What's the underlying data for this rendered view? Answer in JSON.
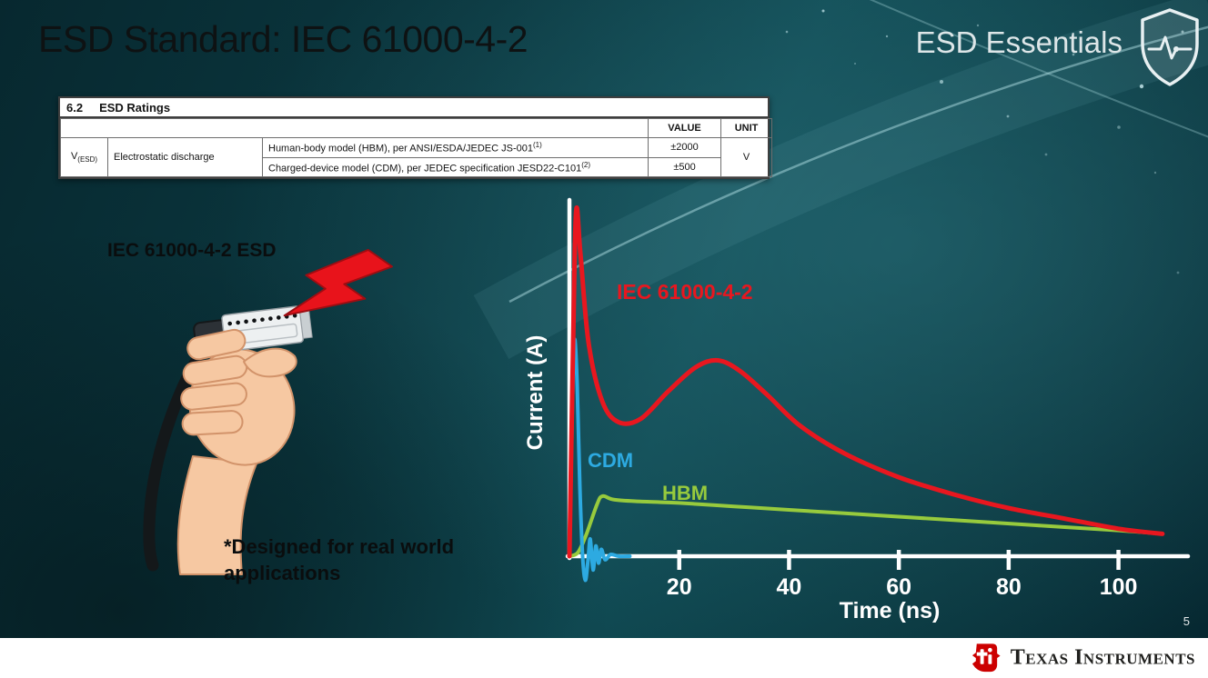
{
  "slide": {
    "title": "ESD Standard: IEC 61000-4-2",
    "series": "ESD Essentials",
    "page_number": "5",
    "footer_brand": "Texas Instruments"
  },
  "colors": {
    "ti_red": "#cc0000",
    "bolt_red": "#e8131b",
    "background_teal": "#0d3f48"
  },
  "ratings_table": {
    "section": "6.2",
    "section_title": "ESD Ratings",
    "col_value": "VALUE",
    "col_unit": "UNIT",
    "symbol_base": "V",
    "symbol_sub": "(ESD)",
    "parameter": "Electrostatic discharge",
    "rows": [
      {
        "desc": "Human-body model (HBM), per ANSI/ESDA/JEDEC JS-001",
        "sup": "(1)",
        "value": "±2000"
      },
      {
        "desc": "Charged-device model (CDM), per JEDEC specification JESD22-C101",
        "sup": "(2)",
        "value": "±500"
      }
    ],
    "unit": "V"
  },
  "illustration": {
    "label": "IEC 61000-4-2 ESD",
    "caption": "*Designed for real world applications"
  },
  "chart_data": {
    "type": "line",
    "title": "",
    "xlabel": "Time (ns)",
    "ylabel": "Current (A)",
    "x_ticks": [
      20,
      40,
      60,
      80,
      100
    ],
    "y_ticks": [],
    "xmax": 112,
    "ymax": 100,
    "axis_color": "#ffffff",
    "legend_position": "inline-labels",
    "grid": false,
    "series": [
      {
        "name": "IEC 61000-4-2",
        "color": "#e8171f",
        "width": 5,
        "points": [
          [
            0,
            0
          ],
          [
            0.6,
            55
          ],
          [
            1.2,
            100
          ],
          [
            2,
            88
          ],
          [
            3.5,
            62
          ],
          [
            6,
            45
          ],
          [
            9,
            39
          ],
          [
            13,
            40
          ],
          [
            18,
            48
          ],
          [
            23,
            55
          ],
          [
            27,
            57
          ],
          [
            31,
            54
          ],
          [
            36,
            47
          ],
          [
            42,
            38
          ],
          [
            50,
            30
          ],
          [
            60,
            23
          ],
          [
            70,
            18
          ],
          [
            80,
            14
          ],
          [
            90,
            11
          ],
          [
            100,
            8
          ],
          [
            108,
            6.5
          ]
        ]
      },
      {
        "name": "CDM",
        "color": "#2daae1",
        "width": 4,
        "points": [
          [
            0,
            0
          ],
          [
            0.3,
            25
          ],
          [
            0.7,
            55
          ],
          [
            1,
            63
          ],
          [
            1.4,
            50
          ],
          [
            1.9,
            20
          ],
          [
            2.4,
            0
          ],
          [
            2.9,
            -7
          ],
          [
            3.4,
            -1
          ],
          [
            3.8,
            5
          ],
          [
            4.3,
            -4
          ],
          [
            4.8,
            3
          ],
          [
            5.3,
            -2
          ],
          [
            5.8,
            2
          ],
          [
            6.5,
            -1
          ],
          [
            7.5,
            0.5
          ],
          [
            9,
            0
          ],
          [
            11,
            0
          ]
        ]
      },
      {
        "name": "HBM",
        "color": "#97ca3d",
        "width": 4,
        "points": [
          [
            0,
            0
          ],
          [
            1.5,
            1
          ],
          [
            3,
            6
          ],
          [
            5,
            15
          ],
          [
            6,
            17.5
          ],
          [
            8,
            16.5
          ],
          [
            12,
            16
          ],
          [
            20,
            15.5
          ],
          [
            30,
            14.5
          ],
          [
            40,
            13.5
          ],
          [
            55,
            12
          ],
          [
            70,
            10.5
          ],
          [
            85,
            9
          ],
          [
            100,
            7.5
          ],
          [
            108,
            6.5
          ]
        ]
      }
    ]
  }
}
